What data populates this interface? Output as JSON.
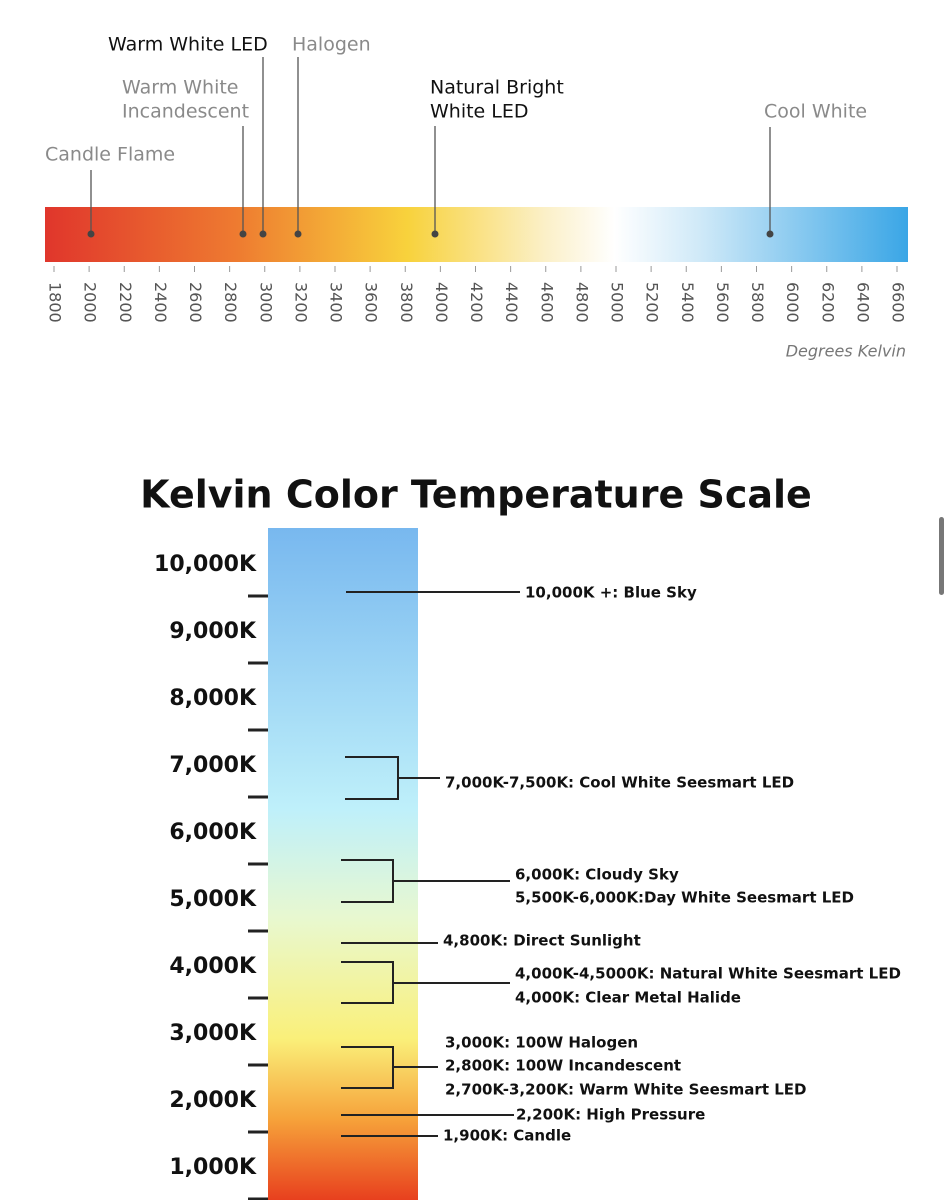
{
  "top_scale": {
    "labels": {
      "warm_white_led": "Warm White LED",
      "halogen": "Halogen",
      "warm_white_incandescent": [
        "Warm White",
        "Incandescent"
      ],
      "natural_bright_white_led": [
        "Natural Bright",
        "White LED"
      ],
      "cool_white": "Cool White",
      "candle_flame": "Candle Flame"
    },
    "ticks": [
      1800,
      2000,
      2200,
      2400,
      2600,
      2800,
      3000,
      3200,
      3400,
      3600,
      3800,
      4000,
      4200,
      4400,
      4600,
      4800,
      5000,
      5200,
      5400,
      5600,
      5800,
      6000,
      6200,
      6400,
      6600
    ],
    "axis_label": "Degrees Kelvin"
  },
  "bottom_scale": {
    "title": "Kelvin Color Temperature Scale",
    "levels": [
      "10,000K",
      "9,000K",
      "8,000K",
      "7,000K",
      "6,000K",
      "5,000K",
      "4,000K",
      "3,000K",
      "2,000K",
      "1,000K"
    ],
    "annotations": [
      [
        "10,000K +: Blue Sky"
      ],
      [
        "7,000K-7,500K: Cool White Seesmart LED"
      ],
      [
        "6,000K: Cloudy Sky",
        "5,500K-6,000K:Day White Seesmart LED"
      ],
      [
        "4,800K: Direct Sunlight"
      ],
      [
        "4,000K-4,5000K: Natural White Seesmart LED",
        "4,000K: Clear Metal Halide"
      ],
      [
        "3,000K: 100W Halogen",
        "2,800K: 100W Incandescent",
        "2,700K-3,200K: Warm White Seesmart LED"
      ],
      [
        "2,200K: High Pressure"
      ],
      [
        "1,900K: Candle"
      ]
    ]
  }
}
